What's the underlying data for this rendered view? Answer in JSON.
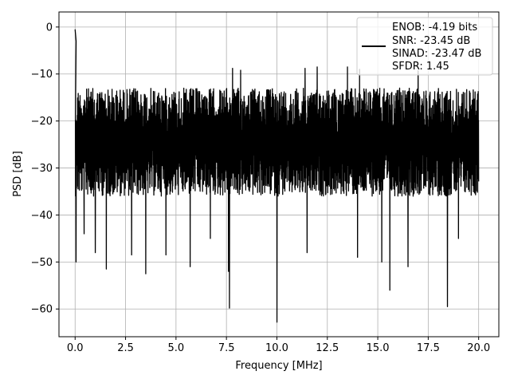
{
  "chart_data": {
    "type": "line",
    "title": "",
    "xlabel": "Frequency [MHz]",
    "ylabel": "PSD [dB]",
    "xlim": [
      -0.8,
      21.0
    ],
    "ylim": [
      -65.9,
      3.2
    ],
    "xticks": [
      0.0,
      2.5,
      5.0,
      7.5,
      10.0,
      12.5,
      15.0,
      17.5,
      20.0
    ],
    "xtick_labels": [
      "0.0",
      "2.5",
      "5.0",
      "7.5",
      "10.0",
      "12.5",
      "15.0",
      "17.5",
      "20.0"
    ],
    "yticks": [
      0,
      -10,
      -20,
      -30,
      -40,
      -50,
      -60
    ],
    "ytick_labels": [
      "0",
      "−10",
      "−20",
      "−30",
      "−40",
      "−50",
      "−60"
    ],
    "grid": true,
    "legend_position": "top-right",
    "legend_lines": [
      "ENOB: -4.19 bits",
      "SNR: -23.45 dB",
      "SINAD: -23.47 dB",
      "SFDR: 1.45"
    ],
    "series": [
      {
        "color": "#000000",
        "description": "dense noisy spectrum",
        "x_range": [
          0.0,
          20.0
        ],
        "upper_envelope": [
          -8,
          -15
        ],
        "lower_envelope": [
          -35,
          -50
        ],
        "peaks": [
          {
            "x": 0.0,
            "y": -0.5
          },
          {
            "x": 0.05,
            "y": -3.0
          }
        ],
        "dips": [
          {
            "x": 0.05,
            "y": -50
          },
          {
            "x": 0.45,
            "y": -44
          },
          {
            "x": 1.0,
            "y": -48
          },
          {
            "x": 1.55,
            "y": -51.5
          },
          {
            "x": 2.8,
            "y": -48.5
          },
          {
            "x": 3.5,
            "y": -52.5
          },
          {
            "x": 4.5,
            "y": -48.5
          },
          {
            "x": 5.7,
            "y": -51
          },
          {
            "x": 6.7,
            "y": -45
          },
          {
            "x": 7.6,
            "y": -52
          },
          {
            "x": 7.65,
            "y": -59.8
          },
          {
            "x": 10.0,
            "y": -62.8
          },
          {
            "x": 11.5,
            "y": -48
          },
          {
            "x": 14.0,
            "y": -49
          },
          {
            "x": 15.2,
            "y": -50
          },
          {
            "x": 15.6,
            "y": -56
          },
          {
            "x": 16.5,
            "y": -51
          },
          {
            "x": 18.45,
            "y": -59.5
          },
          {
            "x": 19.0,
            "y": -45
          }
        ],
        "tall_peaks": [
          {
            "x": 6.7,
            "y": -8.0
          },
          {
            "x": 7.8,
            "y": -8.8
          },
          {
            "x": 8.2,
            "y": -9.2
          },
          {
            "x": 11.4,
            "y": -8.8
          },
          {
            "x": 12.0,
            "y": -8.5
          },
          {
            "x": 13.5,
            "y": -8.5
          },
          {
            "x": 14.1,
            "y": -9.0
          },
          {
            "x": 17.0,
            "y": -9.3
          }
        ]
      }
    ]
  }
}
